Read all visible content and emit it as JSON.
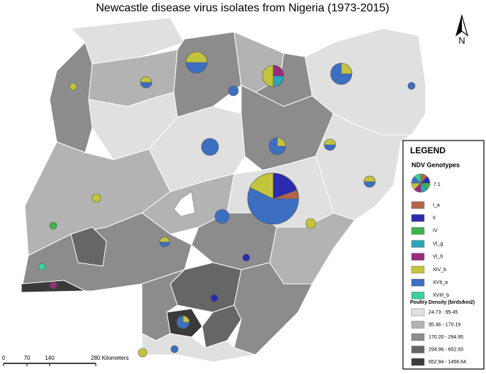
{
  "title": "Newcastle disease virus isolates from Nigeria  (1973-2015)",
  "north": "N",
  "legend": {
    "title": "LEGEND",
    "genotypes_title": "NDV Genotypes",
    "sample_label": "7.1",
    "genotypes": [
      {
        "name": "I_a",
        "color": "#b5654a"
      },
      {
        "name": "II",
        "color": "#2b2bb0"
      },
      {
        "name": "IV",
        "color": "#3cb44b"
      },
      {
        "name": "VI_g",
        "color": "#2aa6b8"
      },
      {
        "name": "VI_h",
        "color": "#9b2b7b"
      },
      {
        "name": "XIV_b",
        "color": "#c4c43c"
      },
      {
        "name": "XVII_a",
        "color": "#3d6fc0"
      },
      {
        "name": "XVIII_b",
        "color": "#3ccf99"
      }
    ],
    "density_title": "Poultry Density (birds/km2)",
    "density": [
      {
        "label": "24.73 - 95.45",
        "color": "#e0e0e0"
      },
      {
        "label": "95.46 - 170.19",
        "color": "#b3b3b3"
      },
      {
        "label": "170.20 - 294.95",
        "color": "#8c8c8c"
      },
      {
        "label": "294.96 - 652.93",
        "color": "#666666"
      },
      {
        "label": "652.94 - 1456.64",
        "color": "#3a3a3a"
      }
    ]
  },
  "scale": {
    "labels": [
      "0",
      "70",
      "140",
      "280 Kilometers"
    ]
  }
}
